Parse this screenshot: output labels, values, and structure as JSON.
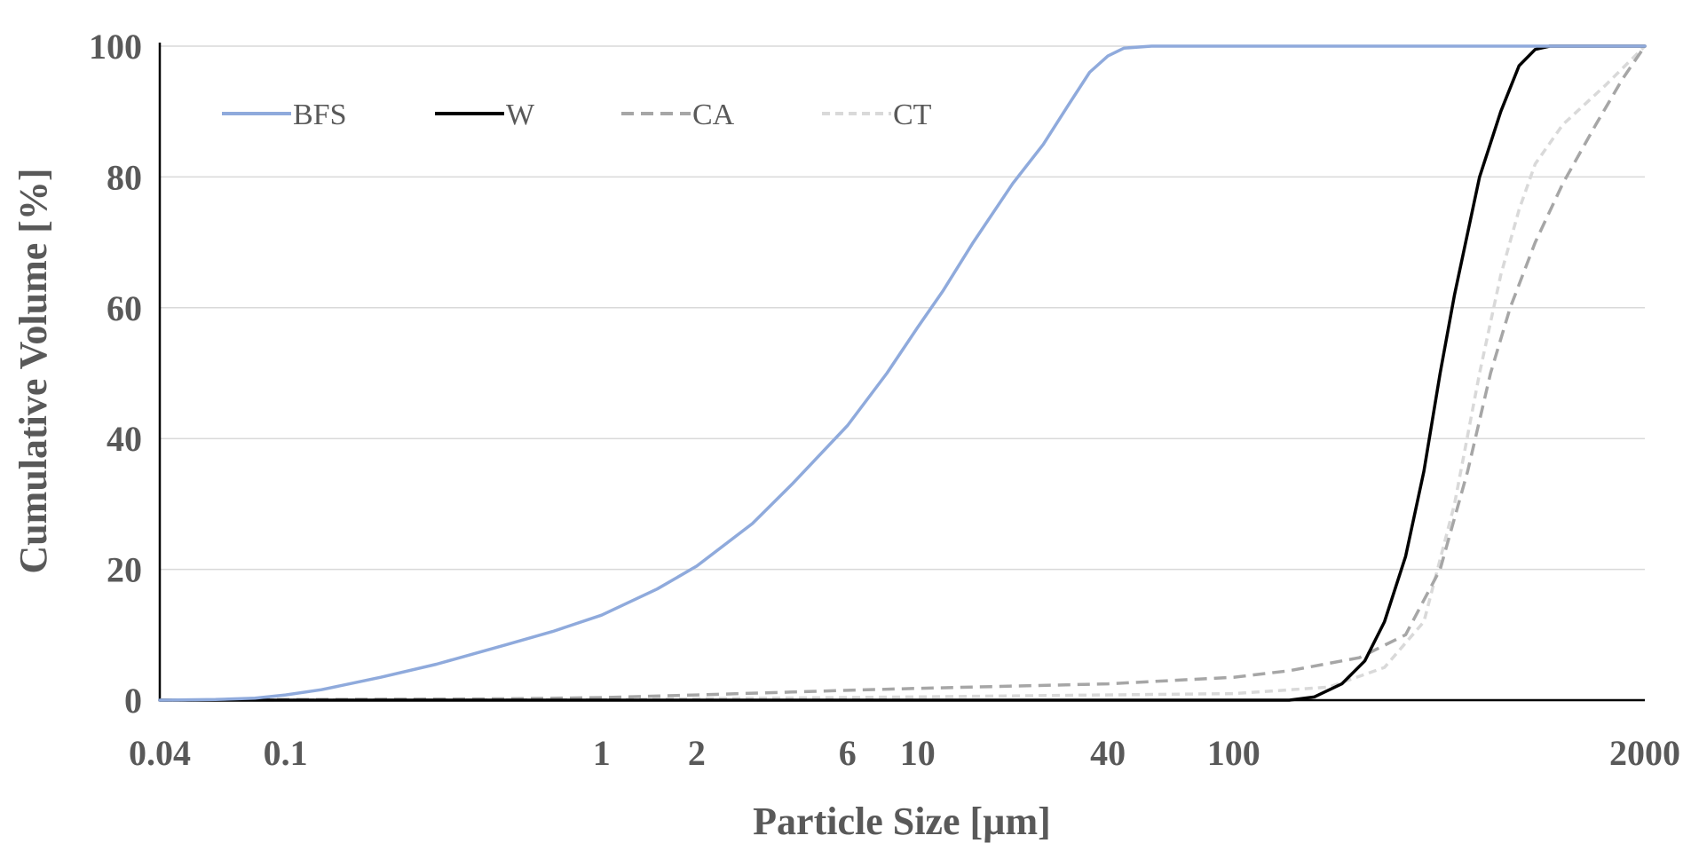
{
  "chart_data": {
    "type": "line",
    "xscale": "log",
    "xlim": [
      0.04,
      2000
    ],
    "ylim": [
      0,
      100
    ],
    "xlabel": "Particle Size [µm]",
    "ylabel": "Cumulative Volume [%]",
    "grid": true,
    "legend_position": "top-left",
    "xticks": [
      {
        "value": 0.04,
        "label": "0.04"
      },
      {
        "value": 0.1,
        "label": "0.1"
      },
      {
        "value": 1,
        "label": "1"
      },
      {
        "value": 2,
        "label": "2"
      },
      {
        "value": 6,
        "label": "6"
      },
      {
        "value": 10,
        "label": "10"
      },
      {
        "value": 40,
        "label": "40"
      },
      {
        "value": 100,
        "label": "100"
      },
      {
        "value": 2000,
        "label": "2000"
      }
    ],
    "yticks": [
      {
        "value": 0,
        "label": "0"
      },
      {
        "value": 20,
        "label": "20"
      },
      {
        "value": 40,
        "label": "40"
      },
      {
        "value": 60,
        "label": "60"
      },
      {
        "value": 80,
        "label": "80"
      },
      {
        "value": 100,
        "label": "100"
      }
    ],
    "series": [
      {
        "name": "BFS",
        "color": "#8faadc",
        "dash": "solid",
        "points": [
          [
            0.04,
            0
          ],
          [
            0.06,
            0.1
          ],
          [
            0.08,
            0.3
          ],
          [
            0.1,
            0.8
          ],
          [
            0.13,
            1.6
          ],
          [
            0.2,
            3.5
          ],
          [
            0.3,
            5.5
          ],
          [
            0.5,
            8.5
          ],
          [
            0.7,
            10.5
          ],
          [
            1,
            13
          ],
          [
            1.5,
            17
          ],
          [
            2,
            20.5
          ],
          [
            3,
            27
          ],
          [
            4,
            33
          ],
          [
            6,
            42
          ],
          [
            8,
            50
          ],
          [
            10,
            57
          ],
          [
            12,
            62.5
          ],
          [
            15,
            70
          ],
          [
            20,
            79
          ],
          [
            25,
            85
          ],
          [
            30,
            91
          ],
          [
            35,
            96
          ],
          [
            40,
            98.5
          ],
          [
            45,
            99.7
          ],
          [
            55,
            100
          ],
          [
            2000,
            100
          ]
        ]
      },
      {
        "name": "W",
        "color": "#000000",
        "dash": "solid",
        "points": [
          [
            0.04,
            0
          ],
          [
            150,
            0
          ],
          [
            180,
            0.5
          ],
          [
            220,
            2.5
          ],
          [
            260,
            6
          ],
          [
            300,
            12
          ],
          [
            350,
            22
          ],
          [
            400,
            35
          ],
          [
            450,
            50
          ],
          [
            500,
            62
          ],
          [
            600,
            80
          ],
          [
            700,
            90
          ],
          [
            800,
            97
          ],
          [
            900,
            99.5
          ],
          [
            1000,
            100
          ],
          [
            2000,
            100
          ]
        ]
      },
      {
        "name": "CA",
        "color": "#a6a6a6",
        "dash": "dashed",
        "points": [
          [
            0.04,
            0
          ],
          [
            0.1,
            0.1
          ],
          [
            0.5,
            0.2
          ],
          [
            1,
            0.4
          ],
          [
            2,
            0.8
          ],
          [
            6,
            1.5
          ],
          [
            10,
            1.8
          ],
          [
            40,
            2.5
          ],
          [
            100,
            3.5
          ],
          [
            150,
            4.5
          ],
          [
            250,
            6.5
          ],
          [
            350,
            10
          ],
          [
            450,
            20
          ],
          [
            550,
            35
          ],
          [
            650,
            50
          ],
          [
            750,
            60
          ],
          [
            900,
            70
          ],
          [
            1100,
            79
          ],
          [
            1400,
            88
          ],
          [
            1700,
            95
          ],
          [
            2000,
            100
          ]
        ]
      },
      {
        "name": "CT",
        "color": "#d9d9d9",
        "dash": "dotted",
        "points": [
          [
            0.04,
            0
          ],
          [
            1,
            0.1
          ],
          [
            10,
            0.5
          ],
          [
            100,
            1
          ],
          [
            200,
            2
          ],
          [
            300,
            5
          ],
          [
            400,
            12
          ],
          [
            500,
            30
          ],
          [
            600,
            50
          ],
          [
            700,
            65
          ],
          [
            800,
            75
          ],
          [
            900,
            82
          ],
          [
            1100,
            88
          ],
          [
            1500,
            94
          ],
          [
            2000,
            100
          ]
        ]
      }
    ]
  }
}
